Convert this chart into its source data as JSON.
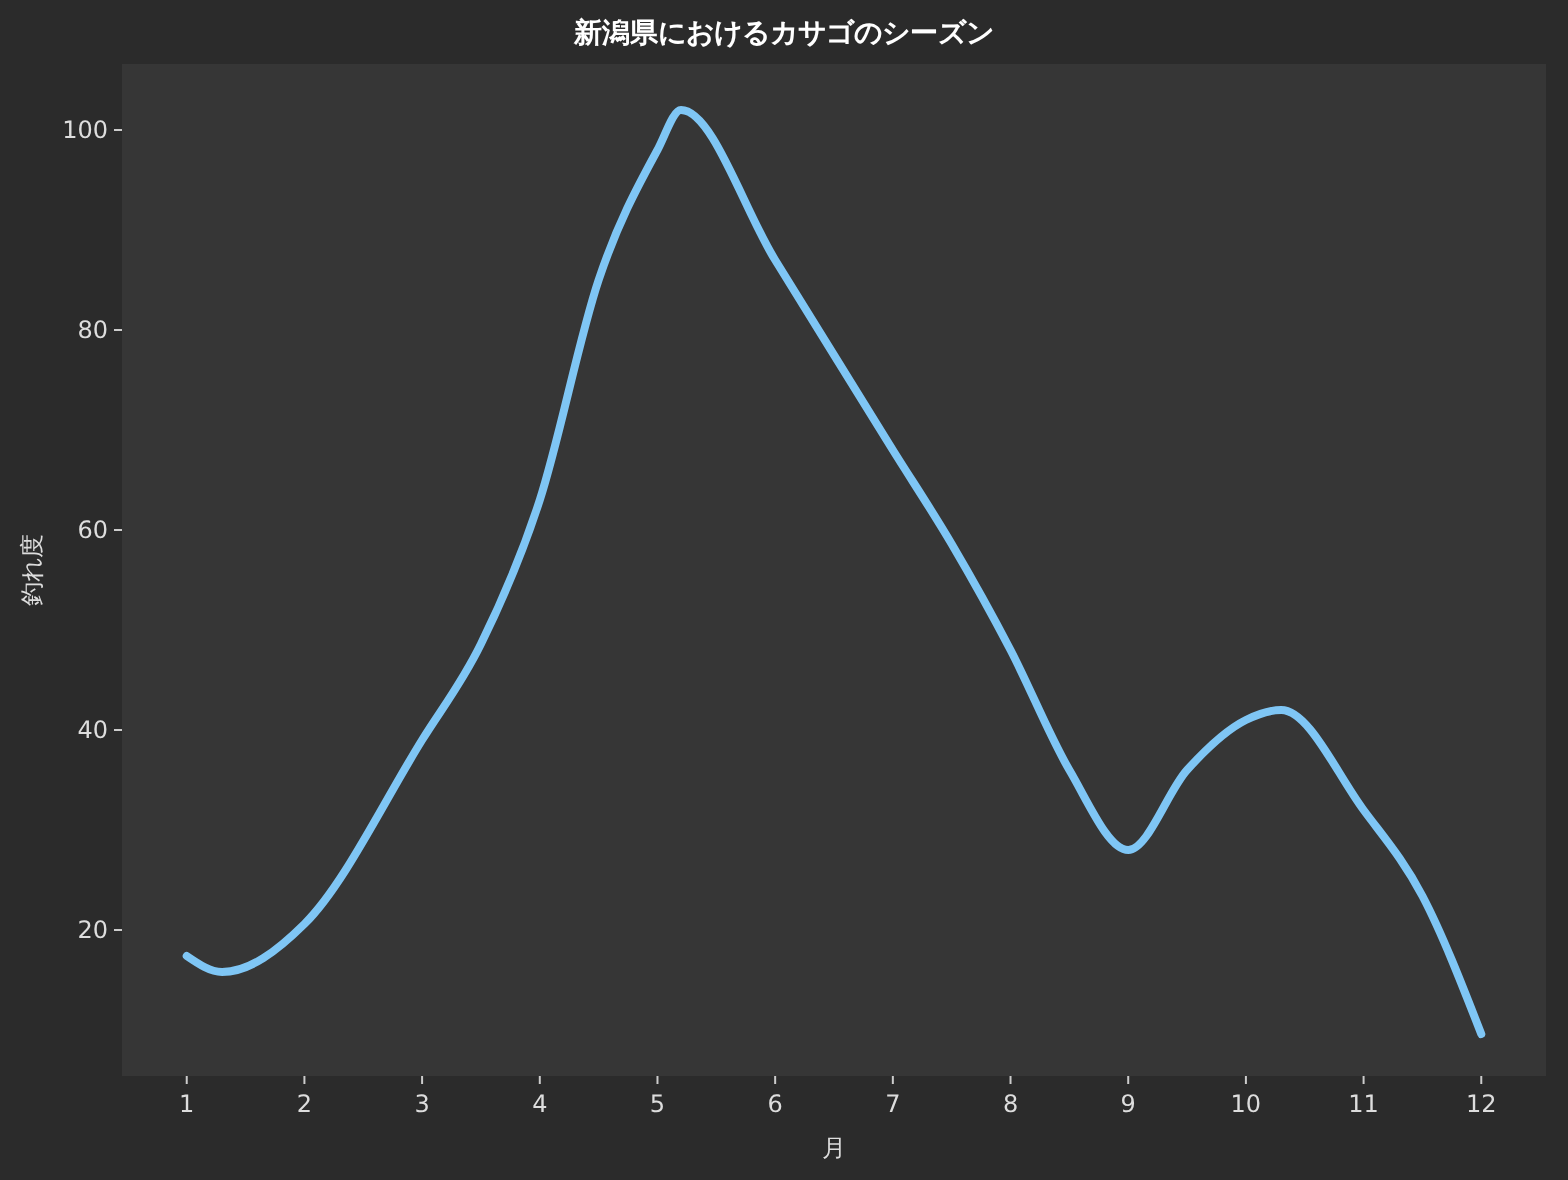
{
  "chart_data": {
    "type": "line",
    "title": "新潟県におけるカサゴのシーズン",
    "xlabel": "月",
    "ylabel": "釣れ度",
    "x": [
      1,
      1.3,
      2,
      3,
      3.5,
      4,
      4.5,
      5,
      5.2,
      6,
      7,
      7.5,
      8,
      8.5,
      9,
      9.5,
      10,
      10.3,
      11,
      11.5,
      12
    ],
    "series": [
      {
        "color": "#7fc6f5",
        "values": [
          17.4,
          15.8,
          20.6,
          39,
          48.6,
          63,
          85,
          98,
          102,
          87,
          68,
          58.6,
          48,
          36,
          28,
          36,
          41,
          42,
          32,
          23.4,
          9.6
        ]
      }
    ],
    "xlim": [
      0.45,
      12.55
    ],
    "ylim": [
      5.4,
      106.6
    ],
    "xticks": [
      1,
      2,
      3,
      4,
      5,
      6,
      7,
      8,
      9,
      10,
      11,
      12
    ],
    "yticks": [
      20,
      40,
      60,
      80,
      100
    ],
    "grid": false,
    "marker": "none",
    "line_style": "solid"
  }
}
